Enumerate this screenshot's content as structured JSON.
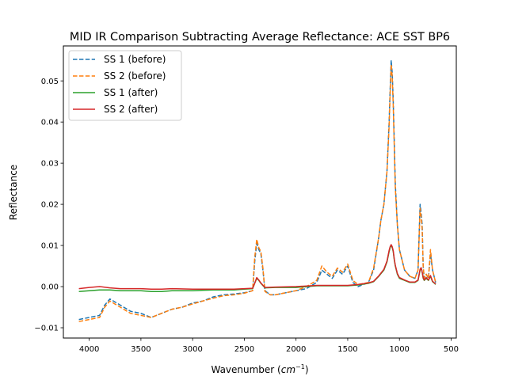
{
  "chart_data": {
    "type": "line",
    "title": "MID IR Comparison Subtracting Average Reflectance: ACE SST BP6",
    "xlabel_main": "Wavenumber (",
    "xlabel_unit_base": "cm",
    "xlabel_unit_exp": "−1",
    "xlabel_close": ")",
    "ylabel": "Reflectance",
    "xlim": [
      4250,
      450
    ],
    "ylim": [
      -0.0125,
      0.0585
    ],
    "x_ticks": [
      {
        "value": 4000,
        "label": "4000"
      },
      {
        "value": 3500,
        "label": "3500"
      },
      {
        "value": 3000,
        "label": "3000"
      },
      {
        "value": 2500,
        "label": "2500"
      },
      {
        "value": 2000,
        "label": "2000"
      },
      {
        "value": 1500,
        "label": "1500"
      },
      {
        "value": 1000,
        "label": "1000"
      },
      {
        "value": 500,
        "label": "500"
      }
    ],
    "y_ticks": [
      {
        "value": -0.01,
        "label": "−0.01"
      },
      {
        "value": 0.0,
        "label": "0.00"
      },
      {
        "value": 0.01,
        "label": "0.01"
      },
      {
        "value": 0.02,
        "label": "0.02"
      },
      {
        "value": 0.03,
        "label": "0.03"
      },
      {
        "value": 0.04,
        "label": "0.04"
      },
      {
        "value": 0.05,
        "label": "0.05"
      }
    ],
    "legend_position": "top-left",
    "grid": false,
    "series": [
      {
        "name": "SS 1 (before)",
        "color": "#1f77b4",
        "dash": true,
        "x": [
          4100,
          4000,
          3900,
          3850,
          3800,
          3700,
          3600,
          3500,
          3400,
          3300,
          3200,
          3100,
          3000,
          2900,
          2800,
          2700,
          2600,
          2500,
          2420,
          2400,
          2380,
          2360,
          2340,
          2320,
          2300,
          2250,
          2200,
          2100,
          2000,
          1900,
          1800,
          1750,
          1700,
          1650,
          1600,
          1550,
          1500,
          1450,
          1400,
          1300,
          1250,
          1200,
          1180,
          1150,
          1120,
          1100,
          1090,
          1080,
          1070,
          1060,
          1050,
          1040,
          1020,
          1000,
          950,
          900,
          850,
          820,
          800,
          790,
          780,
          770,
          760,
          740,
          720,
          700,
          680,
          660,
          650
        ],
        "y": [
          -0.008,
          -0.0075,
          -0.007,
          -0.0045,
          -0.003,
          -0.0045,
          -0.006,
          -0.0065,
          -0.0075,
          -0.0065,
          -0.0055,
          -0.005,
          -0.004,
          -0.0035,
          -0.0025,
          -0.002,
          -0.0018,
          -0.0015,
          -0.001,
          0.006,
          0.0105,
          0.009,
          0.008,
          0.004,
          -0.001,
          -0.002,
          -0.002,
          -0.0015,
          -0.001,
          -0.0005,
          0.001,
          0.004,
          0.003,
          0.002,
          0.004,
          0.003,
          0.005,
          0.001,
          0.0,
          0.001,
          0.004,
          0.012,
          0.016,
          0.02,
          0.028,
          0.04,
          0.048,
          0.055,
          0.052,
          0.045,
          0.035,
          0.025,
          0.015,
          0.009,
          0.004,
          0.0025,
          0.002,
          0.004,
          0.02,
          0.018,
          0.015,
          0.005,
          0.002,
          0.003,
          0.002,
          0.008,
          0.004,
          0.002,
          0.001
        ]
      },
      {
        "name": "SS 2 (before)",
        "color": "#ff7f0e",
        "dash": true,
        "x": [
          4100,
          4000,
          3900,
          3850,
          3800,
          3700,
          3600,
          3500,
          3400,
          3300,
          3200,
          3100,
          3000,
          2900,
          2800,
          2700,
          2600,
          2500,
          2420,
          2400,
          2380,
          2360,
          2340,
          2320,
          2300,
          2250,
          2200,
          2100,
          2000,
          1900,
          1800,
          1750,
          1700,
          1650,
          1600,
          1550,
          1500,
          1450,
          1400,
          1300,
          1250,
          1200,
          1180,
          1150,
          1120,
          1100,
          1090,
          1080,
          1070,
          1060,
          1050,
          1040,
          1020,
          1000,
          950,
          900,
          850,
          820,
          800,
          790,
          780,
          770,
          760,
          740,
          720,
          700,
          680,
          660,
          650
        ],
        "y": [
          -0.0085,
          -0.008,
          -0.0075,
          -0.005,
          -0.0035,
          -0.005,
          -0.0065,
          -0.007,
          -0.0075,
          -0.0065,
          -0.0055,
          -0.005,
          -0.0042,
          -0.0035,
          -0.0028,
          -0.0022,
          -0.002,
          -0.0016,
          -0.001,
          0.007,
          0.0115,
          0.0095,
          0.0085,
          0.0045,
          -0.0012,
          -0.002,
          -0.002,
          -0.0015,
          -0.001,
          0.0,
          0.0015,
          0.005,
          0.0035,
          0.0025,
          0.0045,
          0.0035,
          0.0055,
          0.0015,
          0.0005,
          0.001,
          0.0045,
          0.012,
          0.016,
          0.02,
          0.028,
          0.039,
          0.047,
          0.054,
          0.051,
          0.044,
          0.034,
          0.024,
          0.015,
          0.009,
          0.004,
          0.0025,
          0.002,
          0.004,
          0.019,
          0.017,
          0.014,
          0.005,
          0.002,
          0.003,
          0.002,
          0.009,
          0.004,
          0.002,
          0.001
        ]
      },
      {
        "name": "SS 1 (after)",
        "color": "#2ca02c",
        "dash": false,
        "x": [
          4100,
          4000,
          3900,
          3800,
          3700,
          3600,
          3500,
          3400,
          3300,
          3200,
          3000,
          2800,
          2600,
          2500,
          2420,
          2400,
          2380,
          2360,
          2340,
          2300,
          2200,
          2000,
          1800,
          1700,
          1600,
          1500,
          1400,
          1300,
          1250,
          1200,
          1150,
          1120,
          1100,
          1090,
          1080,
          1070,
          1060,
          1050,
          1040,
          1020,
          1000,
          950,
          900,
          850,
          820,
          800,
          790,
          780,
          770,
          760,
          740,
          720,
          700,
          680,
          660,
          650
        ],
        "y": [
          -0.0012,
          -0.001,
          -0.0008,
          -0.0008,
          -0.001,
          -0.001,
          -0.001,
          -0.0012,
          -0.0012,
          -0.001,
          -0.001,
          -0.0008,
          -0.0008,
          -0.0006,
          -0.0005,
          0.0008,
          0.002,
          0.0015,
          0.0008,
          -0.0003,
          -0.0002,
          -0.0002,
          0.0002,
          0.0002,
          0.0002,
          0.0002,
          0.0004,
          0.0008,
          0.0012,
          0.0025,
          0.004,
          0.006,
          0.0085,
          0.0095,
          0.01,
          0.0095,
          0.0085,
          0.0065,
          0.005,
          0.003,
          0.002,
          0.0015,
          0.001,
          0.001,
          0.0015,
          0.004,
          0.0045,
          0.0035,
          0.002,
          0.0015,
          0.002,
          0.0015,
          0.0025,
          0.0012,
          0.0008,
          0.0005
        ]
      },
      {
        "name": "SS 2 (after)",
        "color": "#d62728",
        "dash": false,
        "x": [
          4100,
          4000,
          3900,
          3800,
          3700,
          3600,
          3500,
          3400,
          3300,
          3200,
          3000,
          2800,
          2600,
          2500,
          2420,
          2400,
          2380,
          2360,
          2340,
          2300,
          2200,
          2000,
          1800,
          1700,
          1600,
          1500,
          1400,
          1300,
          1250,
          1200,
          1150,
          1120,
          1100,
          1090,
          1080,
          1070,
          1060,
          1050,
          1040,
          1020,
          1000,
          950,
          900,
          850,
          820,
          800,
          790,
          780,
          770,
          760,
          740,
          720,
          700,
          680,
          660,
          650
        ],
        "y": [
          -0.0005,
          -0.0002,
          0.0,
          -0.0003,
          -0.0005,
          -0.0005,
          -0.0005,
          -0.0006,
          -0.0006,
          -0.0005,
          -0.0006,
          -0.0006,
          -0.0006,
          -0.0005,
          -0.0004,
          0.0008,
          0.0022,
          0.0016,
          0.0009,
          -0.0002,
          -0.0001,
          0.0,
          0.0003,
          0.0003,
          0.0003,
          0.0003,
          0.0005,
          0.0009,
          0.0013,
          0.0026,
          0.0042,
          0.0062,
          0.0088,
          0.0097,
          0.0102,
          0.0097,
          0.0087,
          0.0067,
          0.0052,
          0.0032,
          0.0022,
          0.0016,
          0.0011,
          0.0011,
          0.0016,
          0.0042,
          0.0046,
          0.0036,
          0.0022,
          0.0016,
          0.0022,
          0.0016,
          0.0027,
          0.0013,
          0.0009,
          0.0006
        ]
      }
    ]
  }
}
